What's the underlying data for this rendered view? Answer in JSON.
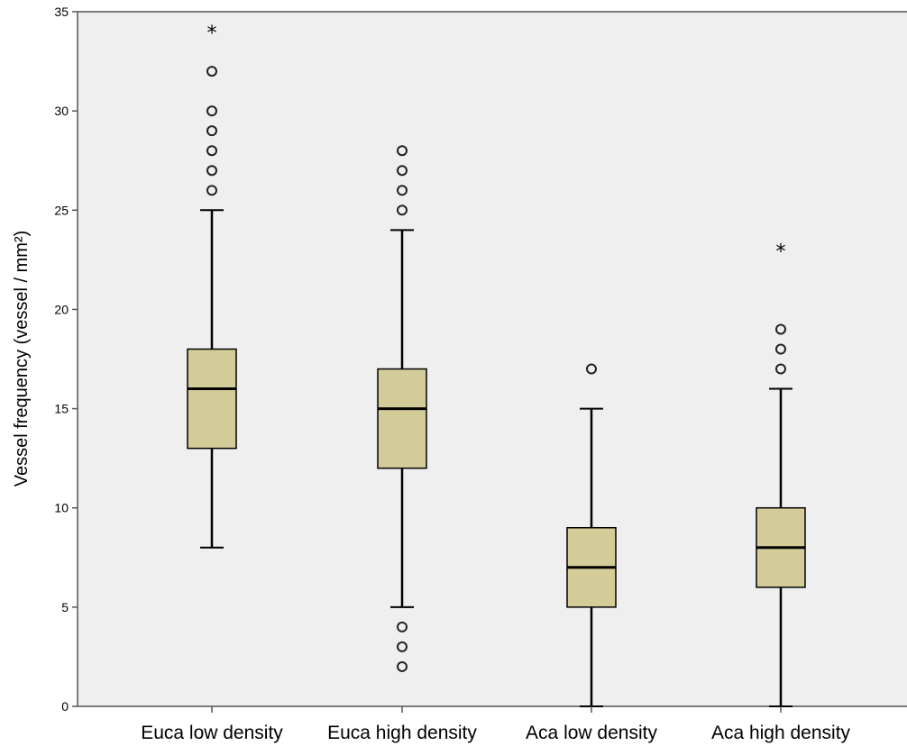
{
  "chart_data": {
    "type": "boxplot",
    "title": "",
    "xlabel": "",
    "ylabel": "Vessel frequency (vessel / mm²)",
    "ylim": [
      0,
      35
    ],
    "yticks": [
      0,
      5,
      10,
      15,
      20,
      25,
      30,
      35
    ],
    "grid": false,
    "categories": [
      "Euca low density",
      "Euca high density",
      "Aca low density",
      "Aca high density"
    ],
    "boxes": [
      {
        "category": "Euca low density",
        "whisker_low": 8,
        "q1": 13,
        "median": 16,
        "q3": 18,
        "whisker_high": 25,
        "outliers": [
          26,
          27,
          28,
          29,
          30,
          32
        ],
        "extremes": [
          34
        ]
      },
      {
        "category": "Euca high density",
        "whisker_low": 5,
        "q1": 12,
        "median": 15,
        "q3": 17,
        "whisker_high": 24,
        "outliers": [
          2,
          3,
          4,
          25,
          26,
          27,
          28
        ],
        "extremes": []
      },
      {
        "category": "Aca low density",
        "whisker_low": 0,
        "q1": 5,
        "median": 7,
        "q3": 9,
        "whisker_high": 15,
        "outliers": [
          17
        ],
        "extremes": []
      },
      {
        "category": "Aca high density",
        "whisker_low": 0,
        "q1": 6,
        "median": 8,
        "q3": 10,
        "whisker_high": 16,
        "outliers": [
          17,
          18,
          19
        ],
        "extremes": [
          23
        ]
      }
    ],
    "colors": {
      "box_fill": "#d4cc98",
      "plot_background": "#efefef",
      "stroke": "#000000",
      "axis": "#555555"
    }
  }
}
